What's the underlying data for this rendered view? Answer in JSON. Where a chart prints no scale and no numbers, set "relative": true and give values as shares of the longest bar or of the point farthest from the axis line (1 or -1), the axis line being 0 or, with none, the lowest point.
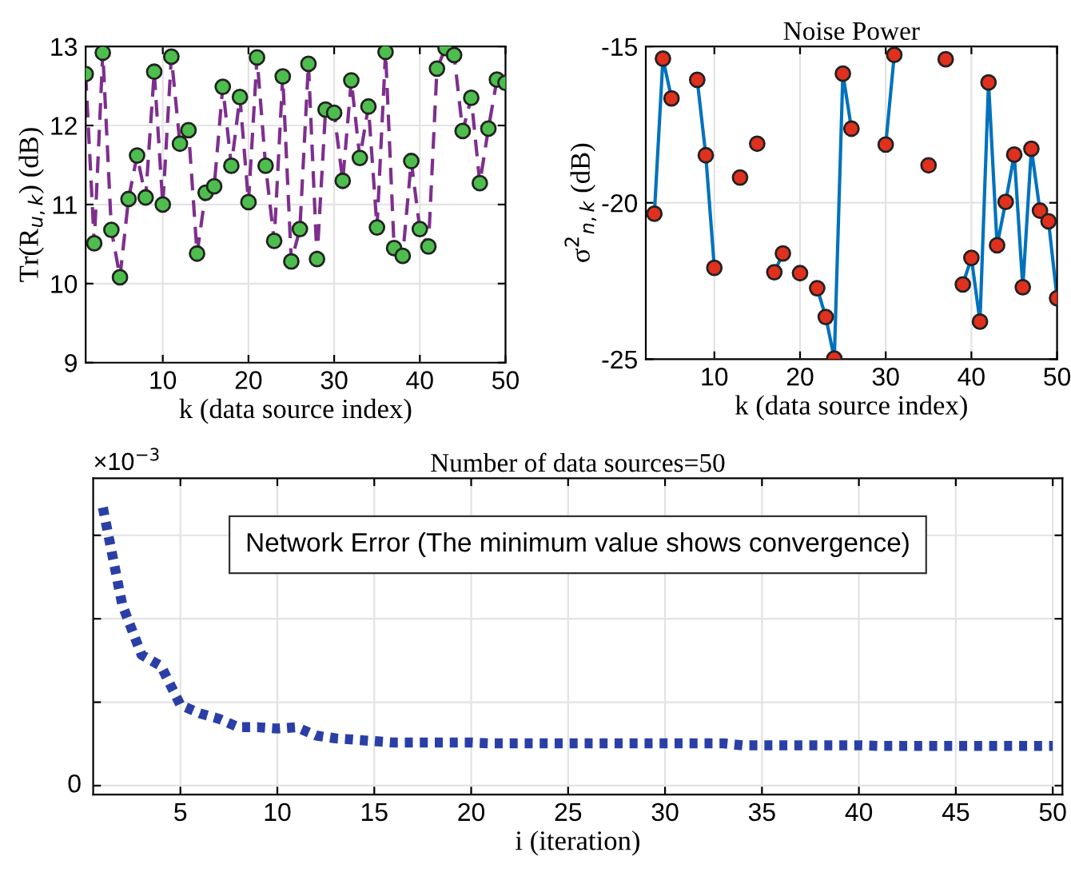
{
  "chart_data": [
    {
      "type": "line",
      "xlabel": "k (data source index)",
      "ylabel": "Tr(R$_{u,k}$) (dB)",
      "x": [
        1,
        2,
        3,
        4,
        5,
        6,
        7,
        8,
        9,
        10,
        11,
        12,
        13,
        14,
        15,
        16,
        17,
        18,
        19,
        20,
        21,
        22,
        23,
        24,
        25,
        26,
        27,
        28,
        29,
        30,
        31,
        32,
        33,
        34,
        35,
        36,
        37,
        38,
        39,
        40,
        41,
        42,
        43,
        44,
        45,
        46,
        47,
        48,
        49,
        50
      ],
      "xlim": [
        1,
        50
      ],
      "xticks": [
        10,
        20,
        30,
        40,
        50
      ],
      "ylim": [
        9,
        13
      ],
      "yticks": [
        9,
        10,
        11,
        12,
        13
      ],
      "grid": true,
      "marker": "circle",
      "line_style": "dashed",
      "series": [
        {
          "color": "#7e2f8e",
          "colors": [
            "#4dbe4d",
            "#4dbe4d",
            "#4dbe4d",
            "#4dbe4d",
            "#4dbe4d",
            "#4dbe4d",
            "#4dbe4d",
            "#4dbe4d",
            "#4dbe4d",
            "#4dbe4d",
            "#4dbe4d",
            "#4dbe4d",
            "#4dbe4d",
            "#4dbe4d",
            "#4dbe4d",
            "#4dbe4d",
            "#4dbe4d",
            "#4dbe4d",
            "#4dbe4d",
            "#4dbe4d",
            "#4dbe4d",
            "#4dbe4d",
            "#4dbe4d",
            "#4dbe4d",
            "#4dbe4d",
            "#4dbe4d",
            "#4dbe4d",
            "#4dbe4d",
            "#4dbe4d",
            "#4dbe4d",
            "#4dbe4d",
            "#4dbe4d",
            "#4dbe4d",
            "#4dbe4d",
            "#4dbe4d",
            "#4dbe4d",
            "#4dbe4d",
            "#4dbe4d",
            "#4dbe4d",
            "#4dbe4d",
            "#4dbe4d",
            "#4dbe4d",
            "#4dbe4d",
            "#4dbe4d",
            "#4dbe4d",
            "#4dbe4d",
            "#4dbe4d",
            "#4dbe4d",
            "#4dbe4d",
            "#4dbe4d"
          ],
          "values": [
            12.65,
            10.51,
            12.92,
            10.68,
            10.08,
            11.07,
            11.62,
            11.09,
            12.68,
            11.0,
            12.87,
            11.77,
            11.94,
            10.38,
            11.15,
            11.23,
            12.49,
            11.49,
            12.36,
            11.03,
            12.86,
            11.49,
            10.54,
            12.62,
            10.28,
            10.69,
            12.78,
            10.31,
            12.2,
            12.16,
            11.3,
            12.57,
            11.59,
            12.24,
            10.71,
            12.93,
            10.45,
            10.35,
            11.55,
            10.69,
            10.47,
            12.72,
            12.98,
            12.89,
            11.93,
            12.35,
            11.27,
            11.96,
            12.58,
            12.54
          ]
        }
      ]
    },
    {
      "type": "line",
      "title": "Noise Power",
      "xlabel": "k (data source index)",
      "ylabel": "σ$^{2}$$_{n,k}$ (dB)",
      "x": [
        3,
        4,
        5,
        6,
        7,
        8,
        9,
        10,
        11,
        12,
        13,
        14,
        15,
        16,
        17,
        18,
        19,
        20,
        21,
        22,
        23,
        24,
        25,
        26,
        27,
        28,
        29,
        30,
        31,
        32,
        33,
        34,
        35,
        36,
        37,
        38,
        39,
        40,
        41,
        42,
        43,
        44,
        45,
        46,
        47,
        48,
        49,
        50
      ],
      "xlim": [
        2,
        50
      ],
      "xticks": [
        10,
        20,
        30,
        40,
        50
      ],
      "ylim": [
        -25,
        -15
      ],
      "yticks": [
        -25,
        -20,
        -15
      ],
      "grid": true,
      "marker": "circle",
      "line_style": "solid",
      "series": [
        {
          "color": "#0072bd",
          "colors": [
            "#e0301e",
            "#e0301e",
            "#e0301e",
            "#e0301e",
            "#e0301e",
            "#e0301e",
            "#e0301e",
            "#e0301e",
            "#e0301e",
            "#e0301e",
            "#e0301e",
            "#e0301e",
            "#e0301e",
            "#e0301e",
            "#e0301e",
            "#e0301e",
            "#e0301e",
            "#e0301e",
            "#e0301e",
            "#e0301e",
            "#e0301e",
            "#e0301e",
            "#e0301e",
            "#e0301e",
            "#e0301e",
            "#e0301e",
            "#e0301e",
            "#e0301e",
            "#e0301e",
            "#e0301e",
            "#e0301e",
            "#e0301e",
            "#e0301e",
            "#e0301e",
            "#e0301e",
            "#e0301e",
            "#e0301e",
            "#e0301e",
            "#e0301e",
            "#e0301e",
            "#e0301e",
            "#e0301e",
            "#e0301e",
            "#e0301e",
            "#e0301e",
            "#e0301e",
            "#e0301e",
            "#e0301e"
          ],
          "values": [
            -20.35,
            -15.39,
            -16.66,
            null,
            null,
            -16.07,
            -18.48,
            -22.08,
            null,
            null,
            -19.19,
            null,
            -18.11,
            null,
            -22.22,
            -21.62,
            null,
            -22.25,
            null,
            -22.73,
            -23.65,
            -24.98,
            -15.87,
            -17.63,
            null,
            null,
            null,
            -18.14,
            -15.27,
            null,
            null,
            null,
            -18.8,
            null,
            -15.41,
            null,
            -22.61,
            -21.76,
            -23.8,
            -16.15,
            -21.36,
            -19.97,
            -18.46,
            -22.7,
            -18.27,
            -20.25,
            -20.59,
            -23.05
          ]
        }
      ]
    },
    {
      "type": "line",
      "title": "Number of data sources=50",
      "xlabel": "i (iteration)",
      "relative": true,
      "x": [
        1,
        2,
        3,
        4,
        5,
        6,
        7,
        8,
        9,
        10,
        11,
        12,
        13,
        14,
        15,
        16,
        17,
        18,
        19,
        20,
        21,
        22,
        23,
        24,
        25,
        26,
        27,
        28,
        29,
        30,
        31,
        32,
        33,
        34,
        35,
        36,
        37,
        38,
        39,
        40,
        41,
        42,
        43,
        44,
        45,
        46,
        47,
        48,
        49,
        50
      ],
      "xlim": [
        0.5,
        50.5
      ],
      "xticks": [
        5,
        10,
        15,
        20,
        25,
        30,
        35,
        40,
        45,
        50
      ],
      "grid": true,
      "marker": "none",
      "line_style": "dotted",
      "annotations": [
        "Network Error (The minimum value shows convergence)",
        "×10$^{−3}$",
        "0"
      ],
      "series": [
        {
          "color": "#2a3fa6",
          "values": [
            1,
            0.65,
            0.47,
            0.43,
            0.29,
            0.26,
            0.24,
            0.21,
            0.21,
            0.205,
            0.21,
            0.18,
            0.17,
            0.165,
            0.16,
            0.155,
            0.155,
            0.155,
            0.155,
            0.155,
            0.152,
            0.152,
            0.152,
            0.152,
            0.152,
            0.152,
            0.152,
            0.152,
            0.152,
            0.152,
            0.152,
            0.152,
            0.152,
            0.145,
            0.145,
            0.145,
            0.145,
            0.145,
            0.145,
            0.145,
            0.143,
            0.143,
            0.143,
            0.143,
            0.143,
            0.143,
            0.143,
            0.143,
            0.143,
            0.143
          ]
        }
      ]
    }
  ]
}
